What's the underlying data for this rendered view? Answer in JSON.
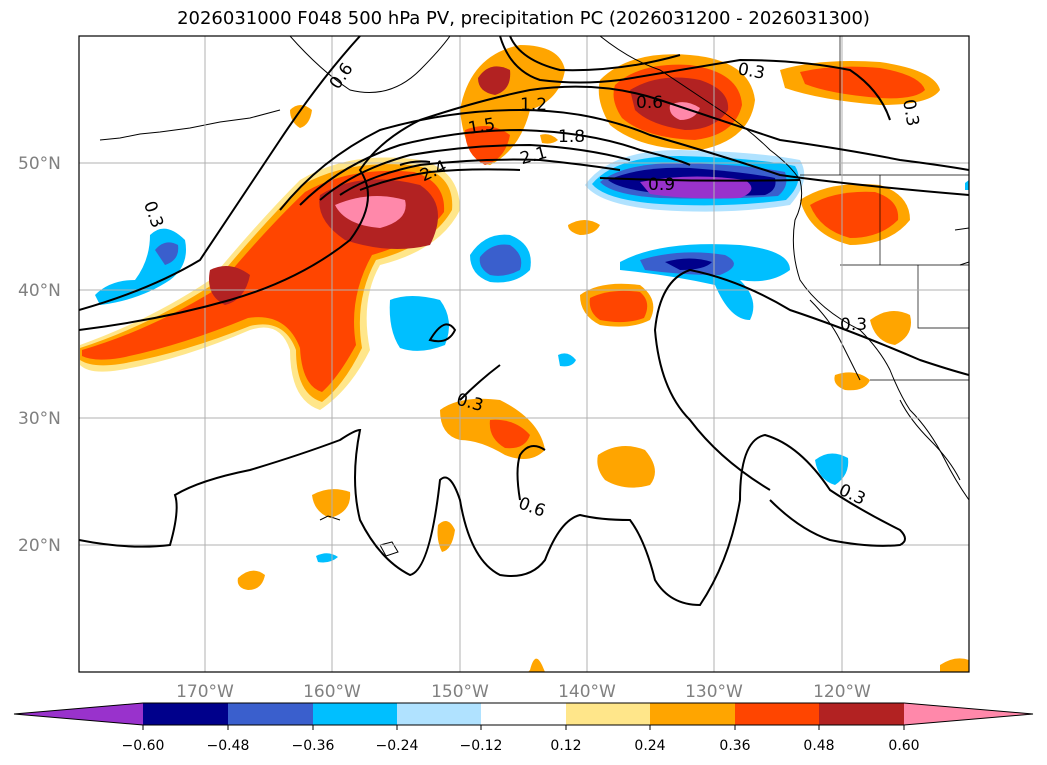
{
  "title": "2026031000 F048 500 hPa PV, precipitation PC (2026031200 - 2026031300)",
  "map": {
    "lon_range": [
      -180,
      -110
    ],
    "lat_range": [
      10,
      60
    ],
    "lat_labels": [
      "20°N",
      "30°N",
      "40°N",
      "50°N"
    ],
    "lon_labels": [
      "170°W",
      "160°W",
      "150°W",
      "140°W",
      "130°W",
      "120°W"
    ],
    "contour_labels": [
      "0.3",
      "0.6",
      "1.2",
      "1.5",
      "1.8",
      "2.1",
      "2.4",
      "0.6",
      "0.3",
      "0.9",
      "0.3",
      "0.3",
      "0.3",
      "0.6",
      "0.3"
    ]
  },
  "colorbar": {
    "ticks": [
      "−0.60",
      "−0.48",
      "−0.36",
      "−0.24",
      "−0.12",
      "0.12",
      "0.24",
      "0.36",
      "0.48",
      "0.60"
    ],
    "colors": [
      "#9932cc",
      "#00008b",
      "#3a5fcd",
      "#00bfff",
      "#b0e2ff",
      "#ffffff",
      "#ffe68a",
      "#ffa500",
      "#ff4500",
      "#b22222",
      "#ff88aa"
    ]
  }
}
